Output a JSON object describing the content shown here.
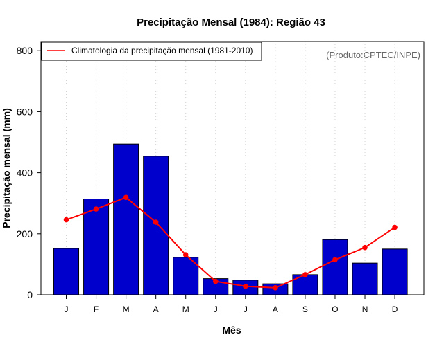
{
  "chart_data": {
    "type": "bar",
    "title": "Precipitação Mensal (1984): Região 43",
    "xlabel": "Mês",
    "ylabel": "Precipitação mensal (mm)",
    "ylim": [
      0,
      830
    ],
    "yticks": [
      "0",
      "200",
      "400",
      "600",
      "800"
    ],
    "categories": [
      "J",
      "F",
      "M",
      "A",
      "M",
      "J",
      "J",
      "A",
      "S",
      "O",
      "N",
      "D"
    ],
    "series": [
      {
        "name": "Precipitação mensal 1984",
        "kind": "bar",
        "values": [
          152,
          314,
          494,
          454,
          123,
          53,
          48,
          36,
          66,
          181,
          104,
          150
        ]
      },
      {
        "name": "Climatologia da precipitação mensal (1981-2010)",
        "kind": "line",
        "values": [
          246,
          281,
          319,
          238,
          131,
          44,
          28,
          23,
          66,
          115,
          155,
          221
        ]
      }
    ],
    "legend": {
      "position": "top-left",
      "entries": [
        "Climatologia da precipitação mensal (1981-2010)"
      ]
    },
    "annotation": "(Produto:CPTEC/INPE)",
    "grid": "vertical-dotted",
    "colors": {
      "bar_fill": "#0000cc",
      "bar_stroke": "#000000",
      "line": "#ff0000",
      "grid": "#d3d3d3",
      "annotation": "#666666"
    }
  }
}
